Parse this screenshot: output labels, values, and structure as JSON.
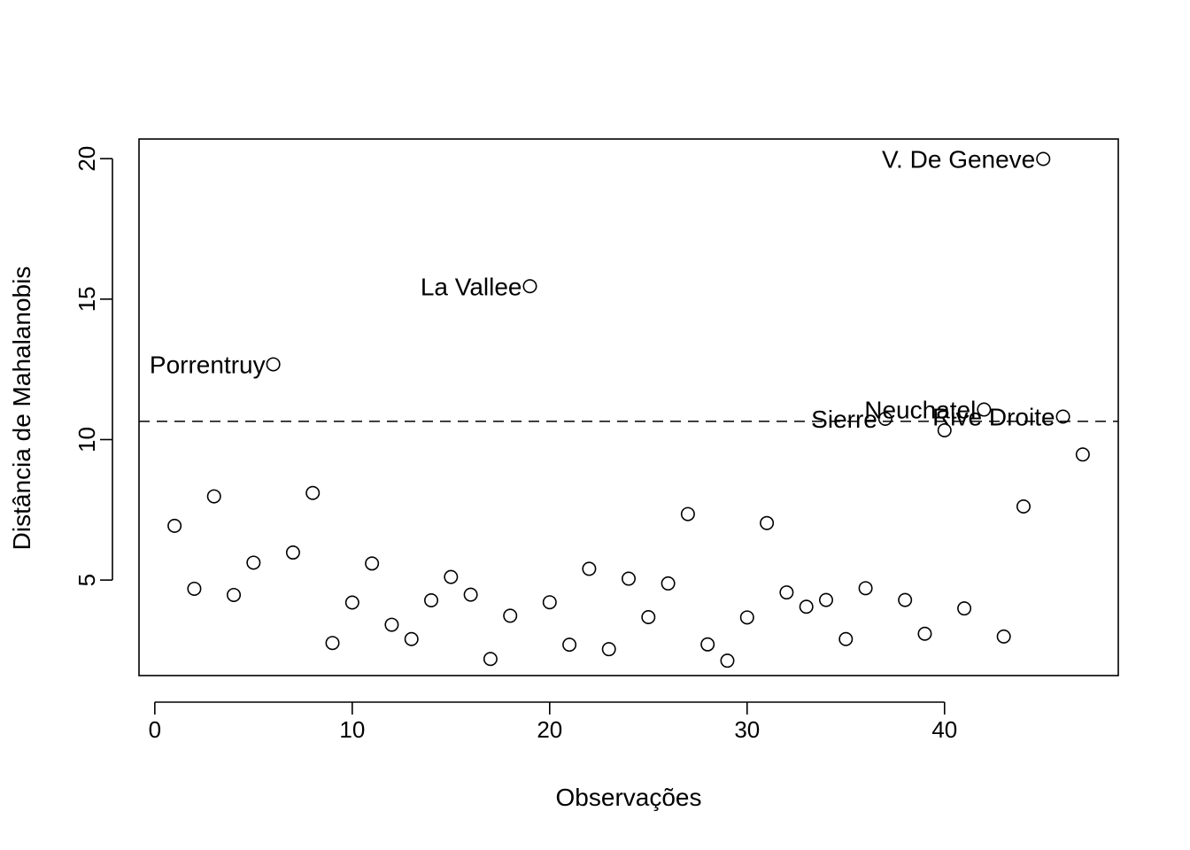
{
  "chart_data": {
    "type": "scatter",
    "title": "",
    "xlabel": "Observações",
    "ylabel": "Distância de Mahalanobis",
    "xlim": [
      -0.8,
      48.8
    ],
    "ylim": [
      1.6,
      20.7
    ],
    "xticks": [
      0,
      10,
      20,
      30,
      40
    ],
    "yticks": [
      5,
      10,
      15,
      20
    ],
    "grid": false,
    "legend": "none",
    "threshold": 10.65,
    "x": [
      1,
      2,
      3,
      4,
      5,
      6,
      7,
      8,
      9,
      10,
      11,
      12,
      13,
      14,
      15,
      16,
      17,
      18,
      19,
      20,
      21,
      22,
      23,
      24,
      25,
      26,
      27,
      28,
      29,
      30,
      31,
      32,
      33,
      34,
      35,
      36,
      37,
      38,
      39,
      40,
      41,
      42,
      43,
      44,
      45,
      46,
      47
    ],
    "y": [
      6.93,
      4.69,
      7.98,
      4.47,
      5.62,
      12.68,
      5.98,
      8.1,
      2.76,
      4.2,
      5.59,
      3.41,
      2.9,
      4.28,
      5.11,
      4.48,
      2.19,
      3.73,
      15.46,
      4.21,
      2.7,
      5.4,
      2.54,
      5.05,
      3.68,
      4.88,
      7.35,
      2.71,
      2.13,
      3.67,
      7.03,
      4.56,
      4.05,
      4.29,
      2.9,
      4.71,
      10.74,
      4.29,
      3.09,
      10.33,
      3.99,
      11.07,
      2.99,
      7.62,
      19.99,
      10.82,
      9.47
    ],
    "labels": [
      {
        "x": 6,
        "text": "Porrentruy"
      },
      {
        "x": 19,
        "text": "La Vallee"
      },
      {
        "x": 37,
        "text": "Sierre"
      },
      {
        "x": 42,
        "text": "Neuchatel"
      },
      {
        "x": 45,
        "text": "V. De Geneve"
      },
      {
        "x": 46,
        "text": "Rive Droite"
      }
    ]
  }
}
